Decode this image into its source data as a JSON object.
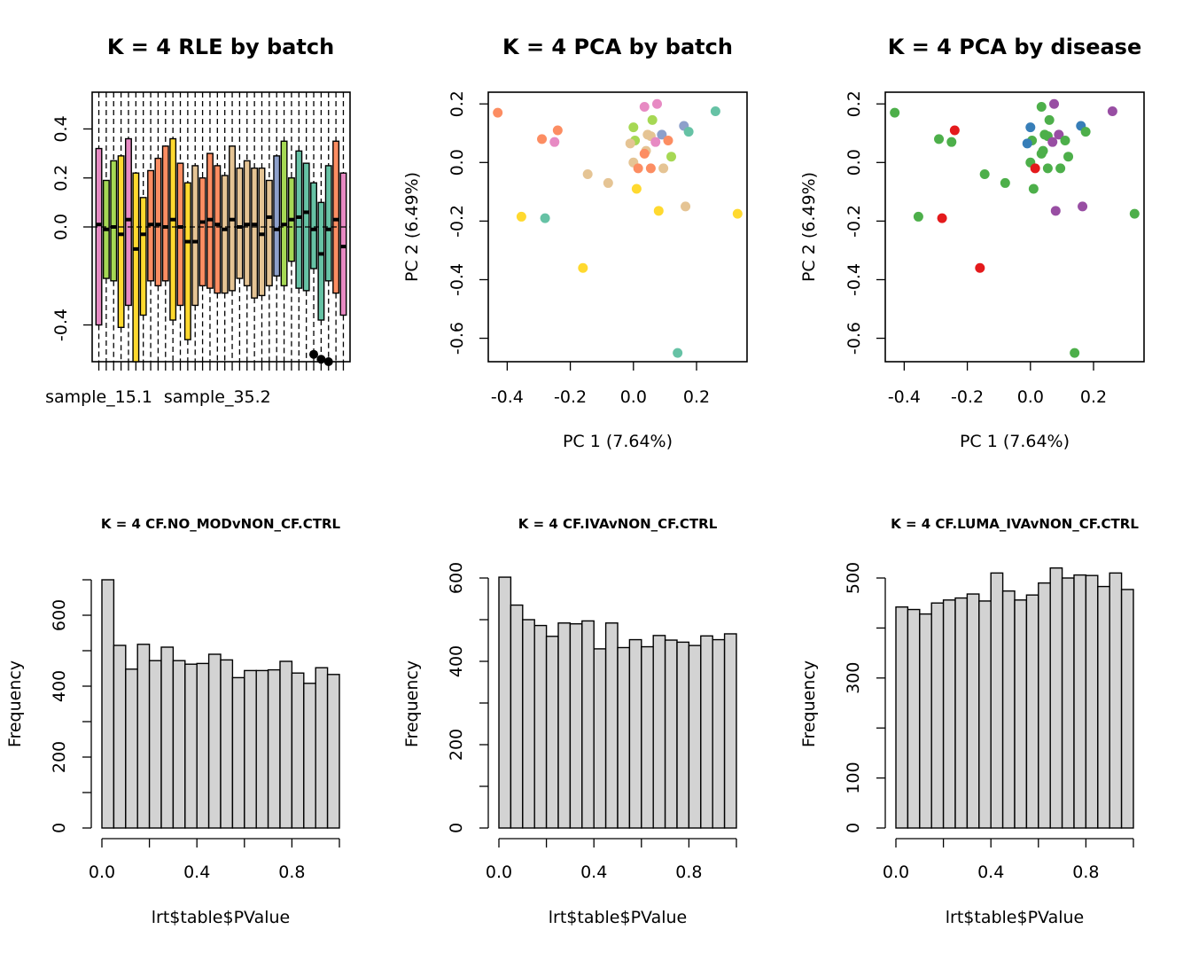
{
  "chart_data": [
    {
      "type": "boxplot",
      "title": "K = 4 RLE by batch",
      "xlabel": "",
      "ylabel": "",
      "ylim": [
        -0.55,
        0.55
      ],
      "yticks": [
        -0.4,
        0.0,
        0.2,
        0.4
      ],
      "xtick_labels": [
        "sample_15.1",
        "sample_35.2"
      ],
      "hline": 0,
      "boxes": [
        {
          "q1": -0.4,
          "med": 0.01,
          "q3": 0.32,
          "color": "#E78AC3"
        },
        {
          "q1": -0.21,
          "med": -0.01,
          "q3": 0.19,
          "color": "#A6D854"
        },
        {
          "q1": -0.22,
          "med": 0.0,
          "q3": 0.27,
          "color": "#A6D854"
        },
        {
          "q1": -0.41,
          "med": -0.03,
          "q3": 0.29,
          "color": "#FFD92F"
        },
        {
          "q1": -0.32,
          "med": 0.03,
          "q3": 0.36,
          "color": "#E78AC3"
        },
        {
          "q1": -0.55,
          "med": -0.09,
          "q3": 0.22,
          "color": "#FFD92F"
        },
        {
          "q1": -0.36,
          "med": -0.03,
          "q3": 0.12,
          "color": "#FFD92F"
        },
        {
          "q1": -0.22,
          "med": 0.01,
          "q3": 0.23,
          "color": "#FC8D62"
        },
        {
          "q1": -0.24,
          "med": 0.01,
          "q3": 0.28,
          "color": "#FC8D62"
        },
        {
          "q1": -0.22,
          "med": 0.0,
          "q3": 0.33,
          "color": "#FC8D62"
        },
        {
          "q1": -0.38,
          "med": 0.03,
          "q3": 0.36,
          "color": "#FFD92F"
        },
        {
          "q1": -0.32,
          "med": 0.0,
          "q3": 0.26,
          "color": "#FC8D62"
        },
        {
          "q1": -0.46,
          "med": -0.06,
          "q3": 0.18,
          "color": "#FFD92F"
        },
        {
          "q1": -0.32,
          "med": -0.06,
          "q3": 0.25,
          "color": "#E5C494"
        },
        {
          "q1": -0.24,
          "med": 0.02,
          "q3": 0.2,
          "color": "#FC8D62"
        },
        {
          "q1": -0.25,
          "med": 0.03,
          "q3": 0.3,
          "color": "#FC8D62"
        },
        {
          "q1": -0.27,
          "med": 0.01,
          "q3": 0.25,
          "color": "#FC8D62"
        },
        {
          "q1": -0.27,
          "med": -0.01,
          "q3": 0.21,
          "color": "#E5C494"
        },
        {
          "q1": -0.26,
          "med": 0.03,
          "q3": 0.33,
          "color": "#E5C494"
        },
        {
          "q1": -0.21,
          "med": 0.0,
          "q3": 0.24,
          "color": "#E5C494"
        },
        {
          "q1": -0.24,
          "med": 0.01,
          "q3": 0.27,
          "color": "#E5C494"
        },
        {
          "q1": -0.29,
          "med": 0.01,
          "q3": 0.24,
          "color": "#E5C494"
        },
        {
          "q1": -0.28,
          "med": -0.03,
          "q3": 0.24,
          "color": "#E5C494"
        },
        {
          "q1": -0.24,
          "med": 0.04,
          "q3": 0.19,
          "color": "#E5C494"
        },
        {
          "q1": -0.2,
          "med": -0.01,
          "q3": 0.29,
          "color": "#8DA0CB"
        },
        {
          "q1": -0.24,
          "med": 0.01,
          "q3": 0.35,
          "color": "#A6D854"
        },
        {
          "q1": -0.14,
          "med": 0.03,
          "q3": 0.2,
          "color": "#A6D854"
        },
        {
          "q1": -0.25,
          "med": 0.04,
          "q3": 0.31,
          "color": "#66C2A5"
        },
        {
          "q1": -0.26,
          "med": 0.06,
          "q3": 0.26,
          "color": "#66C2A5"
        },
        {
          "q1": -0.17,
          "med": -0.01,
          "q3": 0.18,
          "color": "#66C2A5"
        },
        {
          "q1": -0.38,
          "med": -0.11,
          "q3": 0.1,
          "color": "#66C2A5"
        },
        {
          "q1": -0.22,
          "med": -0.01,
          "q3": 0.25,
          "color": "#66C2A5"
        },
        {
          "q1": -0.27,
          "med": 0.03,
          "q3": 0.35,
          "color": "#FC8D62"
        },
        {
          "q1": -0.36,
          "med": -0.08,
          "q3": 0.22,
          "color": "#E78AC3"
        }
      ]
    },
    {
      "type": "scatter",
      "title": "K = 4 PCA by batch",
      "xlabel": "PC 1 (7.64%)",
      "ylabel": "PC 2 (6.49%)",
      "xlim": [
        -0.46,
        0.36
      ],
      "ylim": [
        -0.68,
        0.24
      ],
      "xticks": [
        -0.4,
        -0.2,
        0.0,
        0.2
      ],
      "yticks": [
        -0.6,
        -0.4,
        -0.2,
        0.0,
        0.2
      ],
      "points": [
        {
          "x": -0.43,
          "y": 0.17,
          "color": "#FC8D62"
        },
        {
          "x": -0.29,
          "y": 0.08,
          "color": "#FC8D62"
        },
        {
          "x": -0.25,
          "y": 0.07,
          "color": "#E78AC3"
        },
        {
          "x": -0.24,
          "y": 0.11,
          "color": "#FC8D62"
        },
        {
          "x": -0.355,
          "y": -0.185,
          "color": "#FFD92F"
        },
        {
          "x": -0.28,
          "y": -0.19,
          "color": "#66C2A5"
        },
        {
          "x": -0.145,
          "y": -0.04,
          "color": "#E5C494"
        },
        {
          "x": -0.08,
          "y": -0.07,
          "color": "#E5C494"
        },
        {
          "x": -0.16,
          "y": -0.36,
          "color": "#FFD92F"
        },
        {
          "x": 0.0,
          "y": 0.12,
          "color": "#A6D854"
        },
        {
          "x": 0.035,
          "y": 0.19,
          "color": "#E78AC3"
        },
        {
          "x": 0.075,
          "y": 0.2,
          "color": "#E78AC3"
        },
        {
          "x": 0.06,
          "y": 0.145,
          "color": "#A6D854"
        },
        {
          "x": 0.005,
          "y": 0.075,
          "color": "#A6D854"
        },
        {
          "x": -0.01,
          "y": 0.065,
          "color": "#E5C494"
        },
        {
          "x": 0.045,
          "y": 0.095,
          "color": "#E5C494"
        },
        {
          "x": 0.055,
          "y": 0.09,
          "color": "#E5C494"
        },
        {
          "x": 0.07,
          "y": 0.07,
          "color": "#E78AC3"
        },
        {
          "x": 0.09,
          "y": 0.095,
          "color": "#8DA0CB"
        },
        {
          "x": 0.11,
          "y": 0.075,
          "color": "#FC8D62"
        },
        {
          "x": 0.04,
          "y": 0.04,
          "color": "#E5C494"
        },
        {
          "x": 0.035,
          "y": 0.03,
          "color": "#FC8D62"
        },
        {
          "x": 0.12,
          "y": 0.02,
          "color": "#A6D854"
        },
        {
          "x": 0.0,
          "y": 0.0,
          "color": "#E5C494"
        },
        {
          "x": 0.015,
          "y": -0.02,
          "color": "#FC8D62"
        },
        {
          "x": 0.055,
          "y": -0.02,
          "color": "#FC8D62"
        },
        {
          "x": 0.095,
          "y": -0.02,
          "color": "#E5C494"
        },
        {
          "x": 0.01,
          "y": -0.09,
          "color": "#FFD92F"
        },
        {
          "x": 0.16,
          "y": 0.125,
          "color": "#8DA0CB"
        },
        {
          "x": 0.175,
          "y": 0.105,
          "color": "#66C2A5"
        },
        {
          "x": 0.26,
          "y": 0.175,
          "color": "#66C2A5"
        },
        {
          "x": 0.08,
          "y": -0.165,
          "color": "#FFD92F"
        },
        {
          "x": 0.165,
          "y": -0.15,
          "color": "#E5C494"
        },
        {
          "x": 0.33,
          "y": -0.175,
          "color": "#FFD92F"
        },
        {
          "x": 0.14,
          "y": -0.65,
          "color": "#66C2A5"
        }
      ]
    },
    {
      "type": "scatter",
      "title": "K = 4 PCA by disease",
      "xlabel": "PC 1 (7.64%)",
      "ylabel": "PC 2 (6.49%)",
      "xlim": [
        -0.46,
        0.36
      ],
      "ylim": [
        -0.68,
        0.24
      ],
      "xticks": [
        -0.4,
        -0.2,
        0.0,
        0.2
      ],
      "yticks": [
        -0.6,
        -0.4,
        -0.2,
        0.0,
        0.2
      ],
      "points": [
        {
          "x": -0.43,
          "y": 0.17,
          "color": "#4DAF4A"
        },
        {
          "x": -0.29,
          "y": 0.08,
          "color": "#4DAF4A"
        },
        {
          "x": -0.25,
          "y": 0.07,
          "color": "#4DAF4A"
        },
        {
          "x": -0.24,
          "y": 0.11,
          "color": "#E41A1C"
        },
        {
          "x": -0.355,
          "y": -0.185,
          "color": "#4DAF4A"
        },
        {
          "x": -0.28,
          "y": -0.19,
          "color": "#E41A1C"
        },
        {
          "x": -0.145,
          "y": -0.04,
          "color": "#4DAF4A"
        },
        {
          "x": -0.08,
          "y": -0.07,
          "color": "#4DAF4A"
        },
        {
          "x": -0.16,
          "y": -0.36,
          "color": "#E41A1C"
        },
        {
          "x": 0.0,
          "y": 0.12,
          "color": "#377EB8"
        },
        {
          "x": 0.035,
          "y": 0.19,
          "color": "#4DAF4A"
        },
        {
          "x": 0.075,
          "y": 0.2,
          "color": "#984EA3"
        },
        {
          "x": 0.06,
          "y": 0.145,
          "color": "#4DAF4A"
        },
        {
          "x": 0.005,
          "y": 0.075,
          "color": "#4DAF4A"
        },
        {
          "x": -0.01,
          "y": 0.065,
          "color": "#377EB8"
        },
        {
          "x": 0.045,
          "y": 0.095,
          "color": "#4DAF4A"
        },
        {
          "x": 0.055,
          "y": 0.09,
          "color": "#4DAF4A"
        },
        {
          "x": 0.07,
          "y": 0.07,
          "color": "#984EA3"
        },
        {
          "x": 0.09,
          "y": 0.095,
          "color": "#984EA3"
        },
        {
          "x": 0.11,
          "y": 0.075,
          "color": "#4DAF4A"
        },
        {
          "x": 0.04,
          "y": 0.04,
          "color": "#4DAF4A"
        },
        {
          "x": 0.035,
          "y": 0.03,
          "color": "#4DAF4A"
        },
        {
          "x": 0.12,
          "y": 0.02,
          "color": "#4DAF4A"
        },
        {
          "x": 0.0,
          "y": 0.0,
          "color": "#4DAF4A"
        },
        {
          "x": 0.015,
          "y": -0.02,
          "color": "#E41A1C"
        },
        {
          "x": 0.055,
          "y": -0.02,
          "color": "#4DAF4A"
        },
        {
          "x": 0.095,
          "y": -0.02,
          "color": "#4DAF4A"
        },
        {
          "x": 0.01,
          "y": -0.09,
          "color": "#4DAF4A"
        },
        {
          "x": 0.16,
          "y": 0.125,
          "color": "#377EB8"
        },
        {
          "x": 0.175,
          "y": 0.105,
          "color": "#4DAF4A"
        },
        {
          "x": 0.26,
          "y": 0.175,
          "color": "#984EA3"
        },
        {
          "x": 0.08,
          "y": -0.165,
          "color": "#984EA3"
        },
        {
          "x": 0.165,
          "y": -0.15,
          "color": "#984EA3"
        },
        {
          "x": 0.33,
          "y": -0.175,
          "color": "#4DAF4A"
        },
        {
          "x": 0.14,
          "y": -0.65,
          "color": "#4DAF4A"
        }
      ]
    },
    {
      "type": "bar",
      "title": "K = 4 CF.NO_MODvNON_CF.CTRL",
      "xlabel": "lrt$table$PValue",
      "ylabel": "Frequency",
      "xlim": [
        0,
        1
      ],
      "ylim": [
        0,
        705
      ],
      "xticks": [
        0.0,
        0.4,
        0.8
      ],
      "yticks": [
        0,
        200,
        400,
        600
      ],
      "minor_yticks": [
        100,
        300,
        500,
        700
      ],
      "bin_width": 0.05,
      "values": [
        700,
        515,
        448,
        518,
        472,
        510,
        472,
        462,
        464,
        490,
        474,
        424,
        444,
        444,
        446,
        470,
        437,
        408,
        452,
        433
      ]
    },
    {
      "type": "bar",
      "title": "K = 4 CF.IVAvNON_CF.CTRL",
      "xlabel": "lrt$table$PValue",
      "ylabel": "Frequency",
      "xlim": [
        0,
        1
      ],
      "ylim": [
        0,
        600
      ],
      "xticks": [
        0.0,
        0.4,
        0.8
      ],
      "yticks": [
        0,
        200,
        400,
        600
      ],
      "minor_yticks": [
        100,
        300,
        500
      ],
      "bin_width": 0.05,
      "values": [
        602,
        535,
        500,
        486,
        460,
        492,
        490,
        497,
        430,
        492,
        433,
        452,
        435,
        462,
        451,
        446,
        438,
        461,
        452,
        466
      ]
    },
    {
      "type": "bar",
      "title": "K = 4 CF.LUMA_IVAvNON_CF.CTRL",
      "xlabel": "lrt$table$PValue",
      "ylabel": "Frequency",
      "xlim": [
        0,
        1
      ],
      "ylim": [
        0,
        500
      ],
      "xticks": [
        0.0,
        0.4,
        0.8
      ],
      "yticks": [
        0,
        100,
        300,
        500
      ],
      "minor_yticks": [
        200,
        400
      ],
      "bin_width": 0.05,
      "values": [
        442,
        437,
        428,
        450,
        456,
        460,
        468,
        454,
        510,
        474,
        456,
        466,
        490,
        520,
        500,
        506,
        505,
        483,
        510,
        477
      ]
    }
  ]
}
